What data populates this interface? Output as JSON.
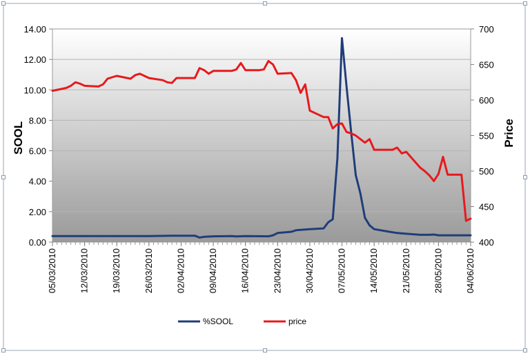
{
  "chart_data": {
    "type": "line",
    "title": "",
    "ylabel": "SOOL",
    "y2label": "Price",
    "ylim": [
      0,
      14
    ],
    "y2lim": [
      400,
      700
    ],
    "x_tick_labels": [
      "05/03/2010",
      "12/03/2010",
      "19/03/2010",
      "26/03/2010",
      "02/04/2010",
      "09/04/2010",
      "16/04/2010",
      "23/04/2010",
      "30/04/2010",
      "07/05/2010",
      "14/05/2010",
      "21/05/2010",
      "28/05/2010",
      "04/06/2010"
    ],
    "y_tick_labels": [
      "0.00",
      "2.00",
      "4.00",
      "6.00",
      "8.00",
      "10.00",
      "12.00",
      "14.00"
    ],
    "y2_tick_labels": [
      "400",
      "450",
      "500",
      "550",
      "600",
      "650",
      "700"
    ],
    "legend_position": "bottom",
    "grid": true,
    "series": [
      {
        "name": "%SOOL",
        "axis": "left",
        "color": "#1f3d7a",
        "points": [
          [
            "05/03/2010",
            0.4
          ],
          [
            "12/03/2010",
            0.4
          ],
          [
            "19/03/2010",
            0.4
          ],
          [
            "26/03/2010",
            0.4
          ],
          [
            "31/03/2010",
            0.42
          ],
          [
            "02/04/2010",
            0.42
          ],
          [
            "05/04/2010",
            0.42
          ],
          [
            "06/04/2010",
            0.3
          ],
          [
            "07/04/2010",
            0.35
          ],
          [
            "09/04/2010",
            0.38
          ],
          [
            "13/04/2010",
            0.4
          ],
          [
            "14/04/2010",
            0.37
          ],
          [
            "16/04/2010",
            0.4
          ],
          [
            "21/04/2010",
            0.38
          ],
          [
            "22/04/2010",
            0.45
          ],
          [
            "23/04/2010",
            0.6
          ],
          [
            "26/04/2010",
            0.68
          ],
          [
            "27/04/2010",
            0.78
          ],
          [
            "30/04/2010",
            0.85
          ],
          [
            "03/05/2010",
            0.9
          ],
          [
            "04/05/2010",
            1.3
          ],
          [
            "05/05/2010",
            1.5
          ],
          [
            "06/05/2010",
            5.5
          ],
          [
            "07/05/2010",
            13.4
          ],
          [
            "08/05/2010",
            10.2
          ],
          [
            "09/05/2010",
            7.2
          ],
          [
            "10/05/2010",
            4.4
          ],
          [
            "11/05/2010",
            3.2
          ],
          [
            "12/05/2010",
            1.6
          ],
          [
            "13/05/2010",
            1.1
          ],
          [
            "14/05/2010",
            0.85
          ],
          [
            "17/05/2010",
            0.7
          ],
          [
            "19/05/2010",
            0.6
          ],
          [
            "21/05/2010",
            0.55
          ],
          [
            "24/05/2010",
            0.48
          ],
          [
            "26/05/2010",
            0.48
          ],
          [
            "27/05/2010",
            0.5
          ],
          [
            "28/05/2010",
            0.45
          ],
          [
            "04/06/2010",
            0.45
          ]
        ]
      },
      {
        "name": "price",
        "axis": "right",
        "color": "#e8191c",
        "points": [
          [
            "05/03/2010",
            613
          ],
          [
            "08/03/2010",
            617
          ],
          [
            "09/03/2010",
            620
          ],
          [
            "10/03/2010",
            625
          ],
          [
            "11/03/2010",
            623
          ],
          [
            "12/03/2010",
            620
          ],
          [
            "15/03/2010",
            619
          ],
          [
            "16/03/2010",
            622
          ],
          [
            "17/03/2010",
            630
          ],
          [
            "18/03/2010",
            632
          ],
          [
            "19/03/2010",
            634
          ],
          [
            "22/03/2010",
            630
          ],
          [
            "23/03/2010",
            635
          ],
          [
            "24/03/2010",
            637
          ],
          [
            "25/03/2010",
            634
          ],
          [
            "26/03/2010",
            631
          ],
          [
            "29/03/2010",
            628
          ],
          [
            "30/03/2010",
            625
          ],
          [
            "31/03/2010",
            624
          ],
          [
            "01/04/2010",
            631
          ],
          [
            "02/04/2010",
            631
          ],
          [
            "05/04/2010",
            631
          ],
          [
            "06/04/2010",
            645
          ],
          [
            "07/04/2010",
            642
          ],
          [
            "08/04/2010",
            637
          ],
          [
            "09/04/2010",
            641
          ],
          [
            "12/04/2010",
            641
          ],
          [
            "13/04/2010",
            641
          ],
          [
            "14/04/2010",
            643
          ],
          [
            "15/04/2010",
            652
          ],
          [
            "16/04/2010",
            642
          ],
          [
            "19/04/2010",
            642
          ],
          [
            "20/04/2010",
            643
          ],
          [
            "21/04/2010",
            655
          ],
          [
            "22/04/2010",
            650
          ],
          [
            "23/04/2010",
            637
          ],
          [
            "26/04/2010",
            638
          ],
          [
            "27/04/2010",
            628
          ],
          [
            "28/04/2010",
            610
          ],
          [
            "29/04/2010",
            622
          ],
          [
            "30/04/2010",
            585
          ],
          [
            "03/05/2010",
            576
          ],
          [
            "04/05/2010",
            576
          ],
          [
            "05/05/2010",
            560
          ],
          [
            "06/05/2010",
            566
          ],
          [
            "07/05/2010",
            567
          ],
          [
            "08/05/2010",
            555
          ],
          [
            "09/05/2010",
            553
          ],
          [
            "10/05/2010",
            550
          ],
          [
            "11/05/2010",
            545
          ],
          [
            "12/05/2010",
            540
          ],
          [
            "13/05/2010",
            545
          ],
          [
            "14/05/2010",
            530
          ],
          [
            "17/05/2010",
            530
          ],
          [
            "18/05/2010",
            530
          ],
          [
            "19/05/2010",
            533
          ],
          [
            "20/05/2010",
            525
          ],
          [
            "21/05/2010",
            527
          ],
          [
            "24/05/2010",
            505
          ],
          [
            "25/05/2010",
            500
          ],
          [
            "26/05/2010",
            494
          ],
          [
            "27/05/2010",
            486
          ],
          [
            "28/05/2010",
            496
          ],
          [
            "29/05/2010",
            520
          ],
          [
            "30/05/2010",
            495
          ],
          [
            "31/05/2010",
            495
          ],
          [
            "01/06/2010",
            495
          ],
          [
            "02/06/2010",
            495
          ],
          [
            "03/06/2010",
            430
          ],
          [
            "04/06/2010",
            433
          ]
        ]
      }
    ]
  }
}
